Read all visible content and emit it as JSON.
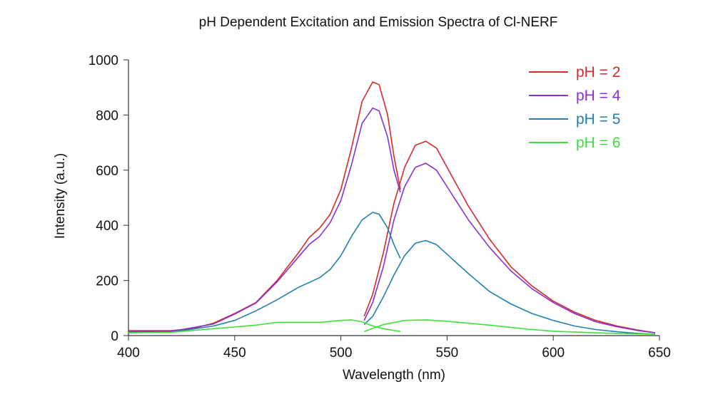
{
  "chart_data": {
    "type": "line",
    "title": "pH Dependent Excitation and Emission Spectra of Cl-NERF",
    "xlabel": "Wavelength (nm)",
    "ylabel": "Intensity (a.u.)",
    "xlim": [
      400,
      650
    ],
    "ylim": [
      0,
      1000
    ],
    "xticks": [
      400,
      450,
      500,
      550,
      600,
      650
    ],
    "yticks": [
      0,
      200,
      400,
      600,
      800,
      1000
    ],
    "grid": false,
    "legend_position": "top-right",
    "series": [
      {
        "name": "pH = 2",
        "color": "#d42a2a",
        "excitation": [
          [
            400,
            18
          ],
          [
            420,
            18
          ],
          [
            430,
            25
          ],
          [
            440,
            45
          ],
          [
            450,
            80
          ],
          [
            460,
            120
          ],
          [
            470,
            200
          ],
          [
            480,
            300
          ],
          [
            485,
            355
          ],
          [
            490,
            390
          ],
          [
            495,
            440
          ],
          [
            500,
            530
          ],
          [
            505,
            680
          ],
          [
            510,
            850
          ],
          [
            515,
            920
          ],
          [
            518,
            910
          ],
          [
            522,
            800
          ],
          [
            525,
            650
          ],
          [
            528,
            530
          ]
        ],
        "emission": [
          [
            511,
            70
          ],
          [
            515,
            150
          ],
          [
            520,
            300
          ],
          [
            525,
            480
          ],
          [
            530,
            610
          ],
          [
            535,
            690
          ],
          [
            540,
            705
          ],
          [
            545,
            680
          ],
          [
            550,
            610
          ],
          [
            560,
            470
          ],
          [
            570,
            350
          ],
          [
            580,
            250
          ],
          [
            590,
            180
          ],
          [
            600,
            125
          ],
          [
            610,
            85
          ],
          [
            620,
            55
          ],
          [
            630,
            35
          ],
          [
            640,
            20
          ],
          [
            648,
            10
          ]
        ]
      },
      {
        "name": "pH = 4",
        "color": "#8a2fd4",
        "excitation": [
          [
            400,
            15
          ],
          [
            420,
            15
          ],
          [
            440,
            42
          ],
          [
            450,
            78
          ],
          [
            460,
            118
          ],
          [
            470,
            195
          ],
          [
            480,
            285
          ],
          [
            485,
            330
          ],
          [
            490,
            360
          ],
          [
            495,
            410
          ],
          [
            500,
            490
          ],
          [
            505,
            620
          ],
          [
            510,
            770
          ],
          [
            515,
            825
          ],
          [
            518,
            815
          ],
          [
            522,
            720
          ],
          [
            525,
            600
          ],
          [
            528,
            520
          ]
        ],
        "emission": [
          [
            511,
            55
          ],
          [
            515,
            120
          ],
          [
            520,
            250
          ],
          [
            525,
            420
          ],
          [
            530,
            540
          ],
          [
            535,
            610
          ],
          [
            540,
            625
          ],
          [
            545,
            600
          ],
          [
            550,
            540
          ],
          [
            560,
            420
          ],
          [
            570,
            320
          ],
          [
            580,
            235
          ],
          [
            590,
            170
          ],
          [
            600,
            120
          ],
          [
            610,
            80
          ],
          [
            620,
            50
          ],
          [
            630,
            32
          ],
          [
            640,
            18
          ],
          [
            648,
            10
          ]
        ]
      },
      {
        "name": "pH = 5",
        "color": "#2080b0",
        "excitation": [
          [
            400,
            12
          ],
          [
            420,
            12
          ],
          [
            440,
            35
          ],
          [
            450,
            55
          ],
          [
            460,
            90
          ],
          [
            470,
            130
          ],
          [
            480,
            175
          ],
          [
            490,
            210
          ],
          [
            495,
            240
          ],
          [
            500,
            290
          ],
          [
            505,
            360
          ],
          [
            510,
            420
          ],
          [
            515,
            447
          ],
          [
            518,
            440
          ],
          [
            522,
            390
          ],
          [
            525,
            330
          ],
          [
            528,
            280
          ]
        ],
        "emission": [
          [
            511,
            40
          ],
          [
            515,
            70
          ],
          [
            520,
            140
          ],
          [
            525,
            220
          ],
          [
            530,
            290
          ],
          [
            535,
            335
          ],
          [
            540,
            345
          ],
          [
            545,
            330
          ],
          [
            550,
            295
          ],
          [
            560,
            225
          ],
          [
            570,
            160
          ],
          [
            580,
            115
          ],
          [
            590,
            80
          ],
          [
            600,
            55
          ],
          [
            610,
            35
          ],
          [
            620,
            22
          ],
          [
            630,
            14
          ],
          [
            640,
            8
          ],
          [
            648,
            5
          ]
        ]
      },
      {
        "name": "pH = 6",
        "color": "#3ee03e",
        "excitation": [
          [
            400,
            10
          ],
          [
            420,
            12
          ],
          [
            440,
            25
          ],
          [
            460,
            38
          ],
          [
            470,
            48
          ],
          [
            480,
            48
          ],
          [
            490,
            48
          ],
          [
            500,
            55
          ],
          [
            505,
            57
          ],
          [
            510,
            50
          ],
          [
            515,
            35
          ],
          [
            520,
            25
          ],
          [
            528,
            15
          ]
        ],
        "emission": [
          [
            511,
            15
          ],
          [
            520,
            40
          ],
          [
            530,
            55
          ],
          [
            540,
            57
          ],
          [
            550,
            52
          ],
          [
            560,
            45
          ],
          [
            570,
            38
          ],
          [
            580,
            30
          ],
          [
            590,
            22
          ],
          [
            600,
            16
          ],
          [
            620,
            10
          ],
          [
            640,
            6
          ],
          [
            648,
            5
          ]
        ]
      }
    ]
  }
}
